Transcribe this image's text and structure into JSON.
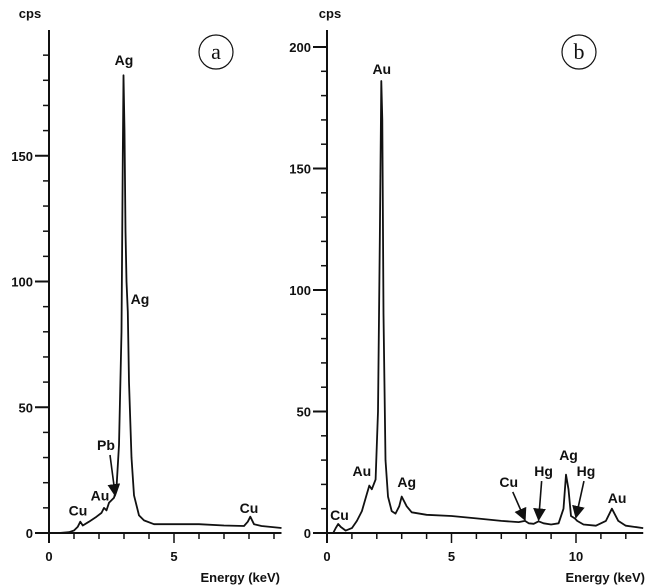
{
  "chart_data": [
    {
      "type": "line",
      "panel_label": "a",
      "ylabel": "cps",
      "xlabel": "Energy (keV)",
      "xlim": [
        0,
        9.3
      ],
      "ylim": [
        0,
        200
      ],
      "xticks": [
        0,
        5
      ],
      "yticks": [
        0,
        50,
        100,
        150
      ],
      "grid": false,
      "series": [
        {
          "points": [
            [
              0.4,
              0
            ],
            [
              0.8,
              0.3
            ],
            [
              1.0,
              1
            ],
            [
              1.15,
              2.5
            ],
            [
              1.25,
              4.5
            ],
            [
              1.35,
              3
            ],
            [
              1.6,
              4.5
            ],
            [
              1.9,
              6.5
            ],
            [
              2.1,
              8
            ],
            [
              2.2,
              10
            ],
            [
              2.3,
              9
            ],
            [
              2.4,
              12
            ],
            [
              2.5,
              13
            ],
            [
              2.6,
              14
            ],
            [
              2.7,
              18
            ],
            [
              2.8,
              35
            ],
            [
              2.9,
              80
            ],
            [
              2.95,
              150
            ],
            [
              2.98,
              182
            ],
            [
              3.02,
              160
            ],
            [
              3.06,
              120
            ],
            [
              3.1,
              100
            ],
            [
              3.15,
              88
            ],
            [
              3.2,
              60
            ],
            [
              3.3,
              30
            ],
            [
              3.4,
              15
            ],
            [
              3.6,
              7
            ],
            [
              3.8,
              5
            ],
            [
              4.2,
              3.5
            ],
            [
              5,
              3.5
            ],
            [
              6,
              3.5
            ],
            [
              7,
              3
            ],
            [
              7.8,
              2.8
            ],
            [
              7.95,
              4.5
            ],
            [
              8.05,
              6.5
            ],
            [
              8.2,
              3.5
            ],
            [
              8.5,
              2.8
            ],
            [
              9.3,
              2
            ]
          ]
        }
      ],
      "annotations": [
        {
          "text": "Ag",
          "x": 3.0,
          "y": 188
        },
        {
          "text": "Ag",
          "x": 3.64,
          "y": 93
        },
        {
          "text": "Pb",
          "x": 2.28,
          "y": 35,
          "arrow_to": [
            2.65,
            15
          ]
        },
        {
          "text": "Au",
          "x": 2.04,
          "y": 15
        },
        {
          "text": "Cu",
          "x": 1.16,
          "y": 9
        },
        {
          "text": "Cu",
          "x": 8.0,
          "y": 10
        }
      ]
    },
    {
      "type": "line",
      "panel_label": "b",
      "ylabel": "cps",
      "xlabel": "Energy (keV)",
      "xlim": [
        0,
        12.7
      ],
      "ylim": [
        0,
        207
      ],
      "xticks": [
        0,
        5,
        10
      ],
      "yticks": [
        0,
        50,
        100,
        150,
        200
      ],
      "grid": false,
      "series": [
        {
          "points": [
            [
              0.25,
              0
            ],
            [
              0.35,
              2
            ],
            [
              0.45,
              3.7
            ],
            [
              0.55,
              2.5
            ],
            [
              0.75,
              1
            ],
            [
              1.0,
              2
            ],
            [
              1.2,
              5
            ],
            [
              1.4,
              9
            ],
            [
              1.6,
              16
            ],
            [
              1.7,
              19.5
            ],
            [
              1.8,
              18
            ],
            [
              1.95,
              22
            ],
            [
              2.05,
              50
            ],
            [
              2.12,
              120
            ],
            [
              2.18,
              186
            ],
            [
              2.22,
              170
            ],
            [
              2.27,
              90
            ],
            [
              2.35,
              30
            ],
            [
              2.45,
              15
            ],
            [
              2.6,
              9
            ],
            [
              2.75,
              8
            ],
            [
              2.9,
              11
            ],
            [
              3.0,
              15
            ],
            [
              3.1,
              13
            ],
            [
              3.2,
              11
            ],
            [
              3.4,
              8.5
            ],
            [
              4,
              7.5
            ],
            [
              5,
              7
            ],
            [
              6,
              6
            ],
            [
              7,
              5
            ],
            [
              7.7,
              4.5
            ],
            [
              7.95,
              5
            ],
            [
              8.1,
              4
            ],
            [
              8.3,
              3.8
            ],
            [
              8.5,
              4.8
            ],
            [
              8.7,
              4
            ],
            [
              9.0,
              3.5
            ],
            [
              9.3,
              4
            ],
            [
              9.5,
              10
            ],
            [
              9.6,
              24
            ],
            [
              9.7,
              18
            ],
            [
              9.8,
              7
            ],
            [
              9.95,
              6
            ],
            [
              10.05,
              5
            ],
            [
              10.3,
              3.5
            ],
            [
              10.8,
              3
            ],
            [
              11.2,
              5
            ],
            [
              11.44,
              10
            ],
            [
              11.7,
              5
            ],
            [
              12.0,
              3
            ],
            [
              12.7,
              2
            ]
          ]
        }
      ],
      "annotations": [
        {
          "text": "Au",
          "x": 2.2,
          "y": 191
        },
        {
          "text": "Au",
          "x": 1.4,
          "y": 25.5
        },
        {
          "text": "Ag",
          "x": 3.2,
          "y": 21
        },
        {
          "text": "Cu",
          "x": 0.5,
          "y": 7.4
        },
        {
          "text": "Cu",
          "x": 7.3,
          "y": 21,
          "arrow_to": [
            7.95,
            5.5
          ]
        },
        {
          "text": "Hg",
          "x": 8.7,
          "y": 25.5,
          "arrow_to": [
            8.5,
            5.5
          ]
        },
        {
          "text": "Ag",
          "x": 9.7,
          "y": 32
        },
        {
          "text": "Hg",
          "x": 10.4,
          "y": 25.5,
          "arrow_to": [
            10.0,
            6.5
          ]
        },
        {
          "text": "Au",
          "x": 11.65,
          "y": 14.4
        }
      ]
    }
  ]
}
